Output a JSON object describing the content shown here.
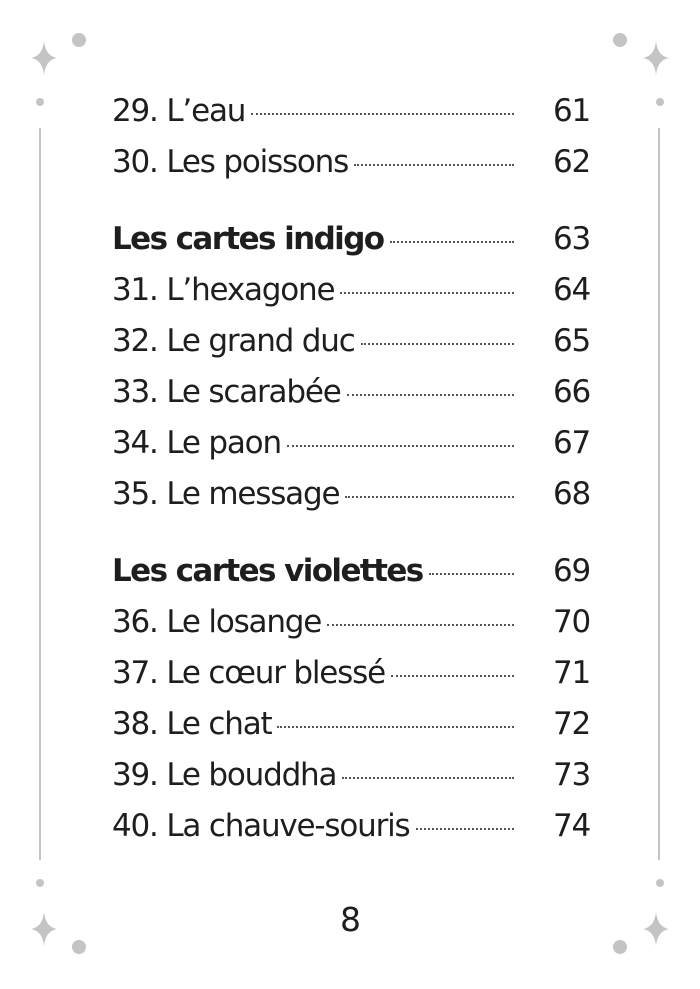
{
  "toc": {
    "group1": [
      {
        "label": "29. L’eau",
        "page": "61"
      },
      {
        "label": "30. Les poissons",
        "page": "62"
      }
    ],
    "section_indigo": {
      "label": "Les cartes indigo",
      "page": "63"
    },
    "group2": [
      {
        "label": "31. L’hexagone",
        "page": "64"
      },
      {
        "label": "32. Le grand duc",
        "page": "65"
      },
      {
        "label": "33. Le scarabée",
        "page": "66"
      },
      {
        "label": "34. Le paon",
        "page": "67"
      },
      {
        "label": "35. Le message",
        "page": "68"
      }
    ],
    "section_violettes": {
      "label": "Les cartes violettes",
      "page": "69"
    },
    "group3": [
      {
        "label": "36. Le losange",
        "page": "70"
      },
      {
        "label": "37. Le cœur blessé",
        "page": "71"
      },
      {
        "label": "38. Le chat",
        "page": "72"
      },
      {
        "label": "39. Le bouddha",
        "page": "73"
      },
      {
        "label": "40. La chauve-souris",
        "page": "74"
      }
    ]
  },
  "footer": {
    "page_number": "8"
  },
  "colors": {
    "ornament": "#c4c4c4",
    "text": "#1e1e1e"
  }
}
